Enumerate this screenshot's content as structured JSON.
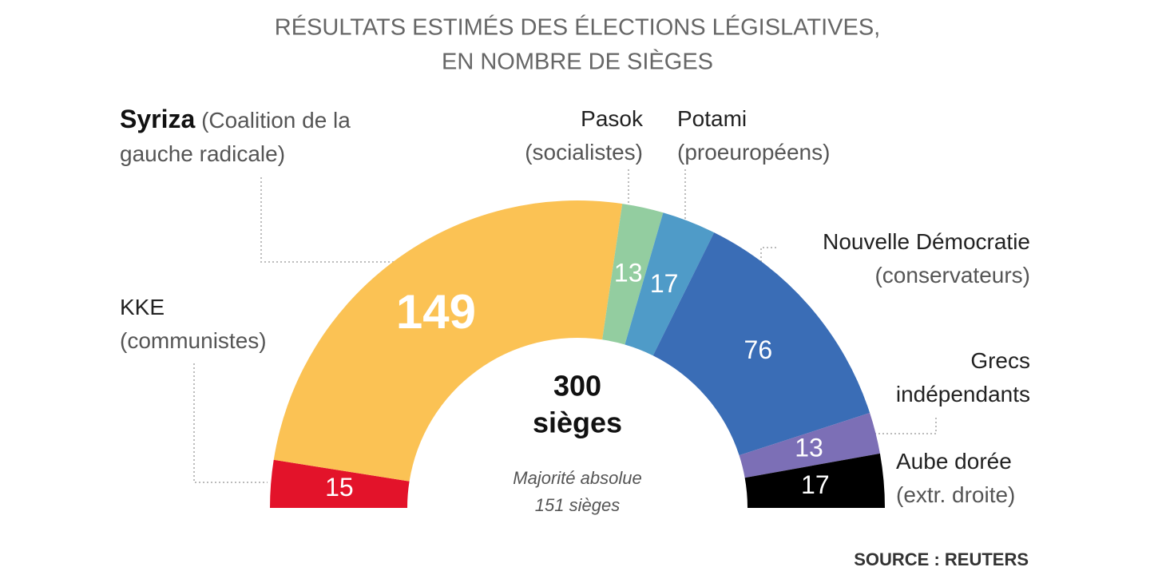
{
  "chart_data": {
    "type": "half-donut",
    "title": [
      "RÉSULTATS ESTIMÉS DES ÉLECTIONS LÉGISLATIVES,",
      "EN NOMBRE DE SIÈGES"
    ],
    "categories": [
      "KKE",
      "Syriza",
      "Pasok",
      "Potami",
      "Nouvelle Démocratie",
      "Grecs indépendants",
      "Aube dorée"
    ],
    "descriptions": [
      "(communistes)",
      "(Coalition de la gauche radicale)",
      "(socialistes)",
      "(proeuropéens)",
      "(conservateurs)",
      null,
      "(extr. droite)"
    ],
    "values": [
      15,
      149,
      13,
      17,
      76,
      13,
      17
    ],
    "colors": [
      "#e3132a",
      "#fbc254",
      "#93cda0",
      "#4f9bc8",
      "#3a6db6",
      "#7c6fb6",
      "#000000"
    ],
    "total": 300,
    "total_unit": "sièges",
    "majority": {
      "label": "Majorité absolue",
      "value": 151,
      "unit": "sièges"
    },
    "source": "SOURCE : REUTERS"
  }
}
